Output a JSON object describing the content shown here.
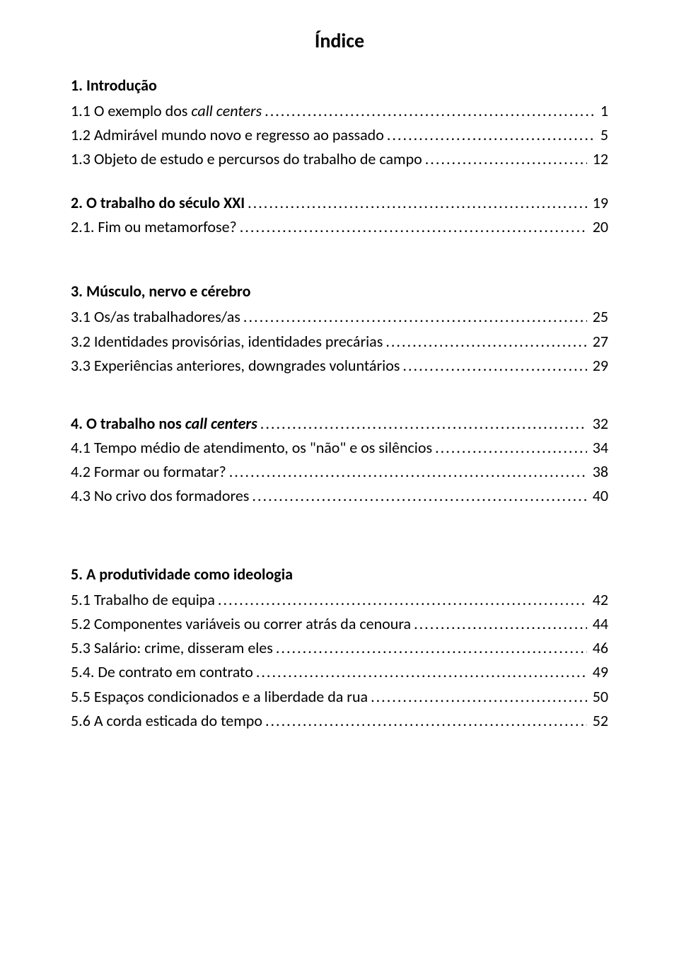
{
  "title": "Índice",
  "sections": [
    {
      "head_pre": "1. Introdução",
      "head_italic": "",
      "head_post": ""
    },
    {
      "pre": "1.1 O exemplo dos ",
      "italic": "call centers",
      "post": " ",
      "page": "1"
    },
    {
      "pre": "1.2 Admirável mundo novo e regresso ao passado ",
      "italic": "",
      "post": "",
      "page": "5"
    },
    {
      "pre": "1.3 Objeto de estudo e percursos do trabalho de campo ",
      "italic": "",
      "post": "",
      "page": "12"
    },
    {
      "head_pre": "2. O trabalho do século XXI ",
      "leader": true,
      "page": "19"
    },
    {
      "pre": "2.1. Fim ou metamorfose? ",
      "italic": "",
      "post": "",
      "page": "20"
    },
    {
      "head_pre": "3. Músculo, nervo e cérebro"
    },
    {
      "pre": "3.1 Os/as trabalhadores/as ",
      "italic": "",
      "post": "",
      "page": "25"
    },
    {
      "pre": "3.2 Identidades provisórias, identidades precárias ",
      "italic": "",
      "post": "",
      "page": "27"
    },
    {
      "pre": "3.3 Experiências anteriores, downgrades voluntários ",
      "italic": "",
      "post": "",
      "page": "29"
    },
    {
      "head_pre": "4. O trabalho nos ",
      "head_italic": "call centers",
      "head_post": " ",
      "leader": true,
      "page": "32"
    },
    {
      "pre": "4.1 Tempo médio de atendimento, os \"não\" e os silêncios ",
      "italic": "",
      "post": "",
      "page": "34"
    },
    {
      "pre": "4.2 Formar ou formatar? ",
      "italic": "",
      "post": "",
      "page": "38"
    },
    {
      "pre": "4.3 No crivo dos formadores ",
      "italic": "",
      "post": "",
      "page": "40"
    },
    {
      "head_pre": "5. A produtividade como ideologia"
    },
    {
      "pre": "5.1 Trabalho de equipa ",
      "italic": "",
      "post": "",
      "page": "42"
    },
    {
      "pre": "5.2 Componentes variáveis ou correr atrás da cenoura ",
      "italic": "",
      "post": "",
      "page": "44"
    },
    {
      "pre": "5.3 Salário: crime, disseram eles ",
      "italic": "",
      "post": "",
      "page": "46"
    },
    {
      "pre": "5.4. De contrato em contrato ",
      "italic": "",
      "post": "",
      "page": "49"
    },
    {
      "pre": "5.5 Espaços condicionados e a liberdade da rua ",
      "italic": "",
      "post": "",
      "page": "50"
    },
    {
      "pre": "5.6 A corda esticada do tempo ",
      "italic": "",
      "post": "",
      "page": "52"
    }
  ]
}
